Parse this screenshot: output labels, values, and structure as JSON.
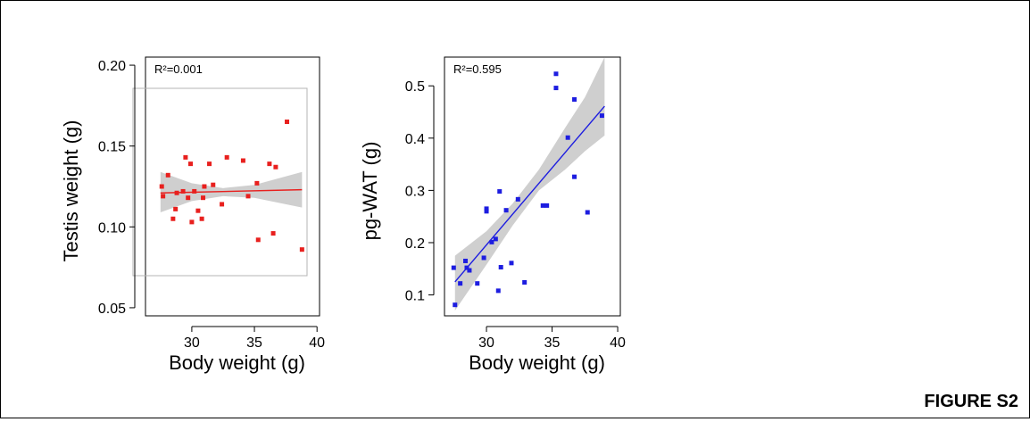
{
  "figure_label": "FIGURE S2",
  "chart_data": [
    {
      "type": "scatter",
      "title": "",
      "xlabel": "Body weight (g)",
      "ylabel": "Testis weight (g)",
      "annotation": "R²=0.001",
      "xlim": [
        26.3,
        40.2
      ],
      "ylim": [
        0.045,
        0.205
      ],
      "xticks": [
        "30",
        "35",
        "40"
      ],
      "yticks": [
        "0.05",
        "0.10",
        "0.15",
        "0.20"
      ],
      "grid": false,
      "point_color": "#e8201e",
      "line_color": "#e8201e",
      "band_color": "#cfcfcf",
      "fit": {
        "x": [
          27.5,
          38.8
        ],
        "y": [
          0.121,
          0.123
        ]
      },
      "ci_upper": [
        [
          27.5,
          0.134
        ],
        [
          30,
          0.127
        ],
        [
          32.5,
          0.124
        ],
        [
          35,
          0.126
        ],
        [
          38.8,
          0.134
        ]
      ],
      "ci_lower": [
        [
          27.5,
          0.109
        ],
        [
          30,
          0.116
        ],
        [
          32.5,
          0.119
        ],
        [
          35,
          0.118
        ],
        [
          38.8,
          0.112
        ]
      ],
      "points": [
        [
          27.6,
          0.125
        ],
        [
          27.7,
          0.119
        ],
        [
          28.1,
          0.132
        ],
        [
          28.5,
          0.105
        ],
        [
          28.7,
          0.111
        ],
        [
          28.8,
          0.121
        ],
        [
          29.3,
          0.122
        ],
        [
          29.5,
          0.143
        ],
        [
          29.7,
          0.118
        ],
        [
          29.9,
          0.139
        ],
        [
          30.0,
          0.103
        ],
        [
          30.2,
          0.122
        ],
        [
          30.5,
          0.11
        ],
        [
          30.8,
          0.105
        ],
        [
          30.9,
          0.118
        ],
        [
          31.0,
          0.125
        ],
        [
          31.4,
          0.139
        ],
        [
          31.7,
          0.126
        ],
        [
          32.4,
          0.114
        ],
        [
          32.8,
          0.143
        ],
        [
          34.1,
          0.141
        ],
        [
          34.5,
          0.119
        ],
        [
          35.2,
          0.127
        ],
        [
          35.3,
          0.092
        ],
        [
          36.2,
          0.139
        ],
        [
          36.5,
          0.096
        ],
        [
          36.7,
          0.137
        ],
        [
          37.6,
          0.165
        ],
        [
          38.8,
          0.086
        ]
      ]
    },
    {
      "type": "scatter",
      "title": "",
      "xlabel": "Body weight (g)",
      "ylabel": "pg-WAT (g)",
      "annotation": "R²=0.595",
      "xlim": [
        26.8,
        40.2
      ],
      "ylim": [
        0.06,
        0.555
      ],
      "xticks": [
        "30",
        "35",
        "40"
      ],
      "yticks": [
        "0.1",
        "0.2",
        "0.3",
        "0.4",
        "0.5"
      ],
      "grid": false,
      "point_color": "#1d1de0",
      "line_color": "#1d1de0",
      "band_color": "#cfcfcf",
      "fit": {
        "x": [
          27.6,
          39.0
        ],
        "y": [
          0.125,
          0.461
        ]
      },
      "ci_upper": [
        [
          27.6,
          0.175
        ],
        [
          30,
          0.222
        ],
        [
          32,
          0.275
        ],
        [
          34,
          0.34
        ],
        [
          36,
          0.42
        ],
        [
          37.5,
          0.478
        ],
        [
          39.0,
          0.555
        ]
      ],
      "ci_lower": [
        [
          27.6,
          0.07
        ],
        [
          30,
          0.158
        ],
        [
          32,
          0.233
        ],
        [
          34,
          0.3
        ],
        [
          36,
          0.34
        ],
        [
          37.5,
          0.375
        ],
        [
          39.0,
          0.405
        ]
      ],
      "points": [
        [
          27.5,
          0.152
        ],
        [
          27.6,
          0.081
        ],
        [
          28.0,
          0.122
        ],
        [
          28.4,
          0.165
        ],
        [
          28.5,
          0.152
        ],
        [
          28.7,
          0.147
        ],
        [
          29.3,
          0.122
        ],
        [
          29.8,
          0.171
        ],
        [
          30.0,
          0.26
        ],
        [
          30.0,
          0.265
        ],
        [
          30.4,
          0.201
        ],
        [
          30.7,
          0.207
        ],
        [
          30.9,
          0.108
        ],
        [
          31.0,
          0.298
        ],
        [
          31.1,
          0.153
        ],
        [
          31.5,
          0.262
        ],
        [
          31.9,
          0.161
        ],
        [
          32.4,
          0.283
        ],
        [
          32.9,
          0.124
        ],
        [
          34.3,
          0.271
        ],
        [
          34.6,
          0.271
        ],
        [
          35.3,
          0.523
        ],
        [
          35.3,
          0.496
        ],
        [
          36.2,
          0.401
        ],
        [
          36.7,
          0.326
        ],
        [
          36.7,
          0.474
        ],
        [
          37.7,
          0.258
        ],
        [
          38.8,
          0.443
        ]
      ]
    }
  ]
}
